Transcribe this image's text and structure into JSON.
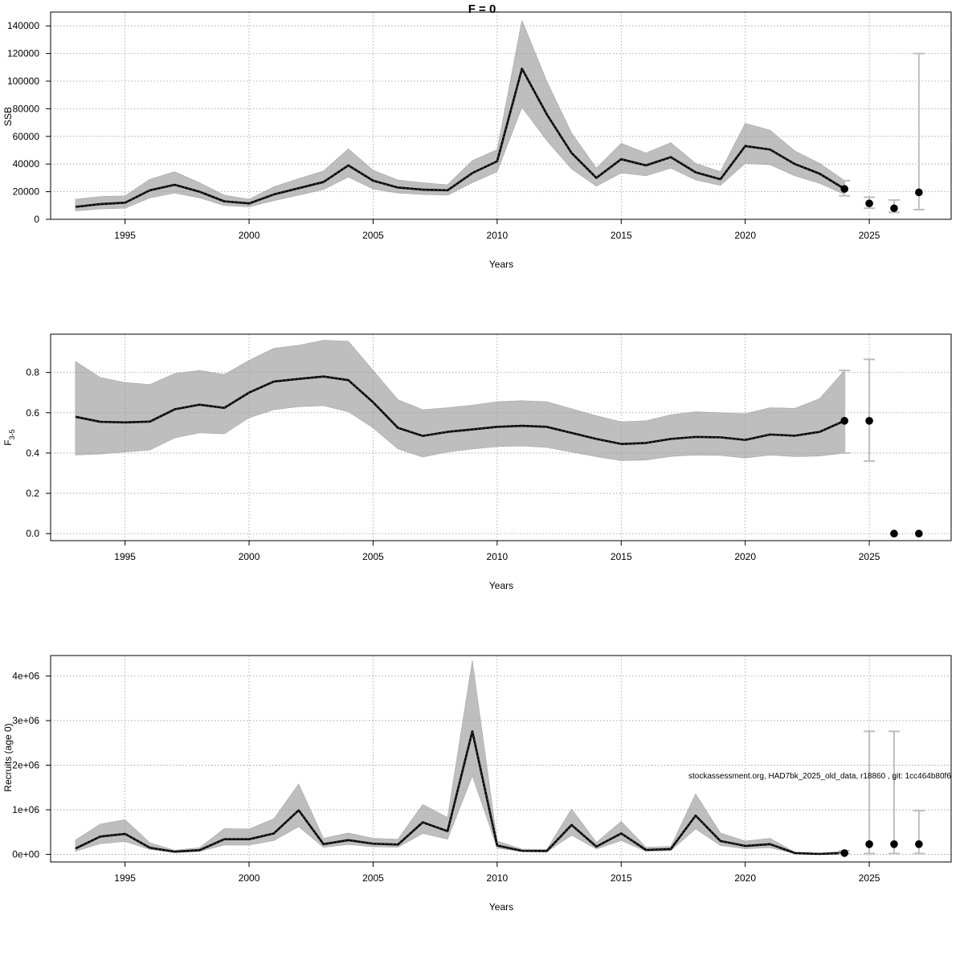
{
  "page": {
    "title": "F = 0",
    "watermark": "stockassessment.org, HAD7bk_2025_old_data, r18860 , git: 1cc464b80f6"
  },
  "colors": {
    "band": "#bebebe",
    "line": "#000000",
    "grid": "#9a9a9a",
    "error_bar": "#bebebe"
  },
  "chart_data": [
    {
      "id": "ssb",
      "type": "line",
      "xlabel": "Years",
      "ylabel": "SSB",
      "xlim": [
        1992,
        2028.3
      ],
      "ylim": [
        0,
        150000
      ],
      "x_ticks": [
        1995,
        2000,
        2005,
        2010,
        2015,
        2020,
        2025
      ],
      "y_ticks": [
        0,
        20000,
        40000,
        60000,
        80000,
        100000,
        120000,
        140000
      ],
      "y_tick_labels": [
        "0",
        "20000",
        "40000",
        "60000",
        "80000",
        "100000",
        "120000",
        "140000"
      ],
      "grid": true,
      "years": [
        1993,
        1994,
        1995,
        1996,
        1997,
        1998,
        1999,
        2000,
        2001,
        2002,
        2003,
        2004,
        2005,
        2006,
        2007,
        2008,
        2009,
        2010,
        2011,
        2012,
        2013,
        2014,
        2015,
        2016,
        2017,
        2018,
        2019,
        2020,
        2021,
        2022,
        2023,
        2024
      ],
      "estimate": [
        9000,
        11000,
        12000,
        21000,
        25000,
        20000,
        13000,
        11500,
        18000,
        22500,
        27000,
        39000,
        28000,
        23000,
        21500,
        21000,
        33500,
        42000,
        109000,
        76000,
        48000,
        30000,
        43500,
        39000,
        45000,
        34000,
        29000,
        53000,
        50500,
        40000,
        33000,
        22000
      ],
      "lower": [
        6000,
        7500,
        8000,
        15500,
        19000,
        15500,
        10000,
        9000,
        13500,
        17500,
        21500,
        30500,
        22000,
        19000,
        18000,
        17500,
        26500,
        34500,
        81000,
        57000,
        36500,
        24000,
        33500,
        31500,
        37000,
        28500,
        24500,
        40500,
        39500,
        31500,
        26000,
        18000
      ],
      "upper": [
        14500,
        16500,
        17000,
        29000,
        34500,
        26500,
        17500,
        14500,
        23500,
        29500,
        35000,
        51000,
        35500,
        28500,
        26500,
        25000,
        42500,
        50500,
        144000,
        100000,
        62500,
        37000,
        55000,
        48000,
        55500,
        40500,
        34500,
        69500,
        64500,
        49500,
        40500,
        28000
      ],
      "forecast": [
        {
          "year": 2024,
          "median": 22000,
          "low": 17000,
          "high": 28000
        },
        {
          "year": 2025,
          "median": 11500,
          "low": 8000,
          "high": 16000
        },
        {
          "year": 2026,
          "median": 8000,
          "low": 5000,
          "high": 14000
        },
        {
          "year": 2027,
          "median": 19500,
          "low": 7000,
          "high": 120000
        }
      ]
    },
    {
      "id": "fbar",
      "type": "line",
      "xlabel": "Years",
      "ylabel": "F",
      "ylabel_subscript": "3-5",
      "xlim": [
        1992,
        2028.3
      ],
      "ylim": [
        -0.035,
        0.99
      ],
      "x_ticks": [
        1995,
        2000,
        2005,
        2010,
        2015,
        2020,
        2025
      ],
      "y_ticks": [
        0,
        0.2,
        0.4,
        0.6,
        0.8
      ],
      "y_tick_labels": [
        "0.0",
        "0.2",
        "0.4",
        "0.6",
        "0.8"
      ],
      "grid": true,
      "years": [
        1993,
        1994,
        1995,
        1996,
        1997,
        1998,
        1999,
        2000,
        2001,
        2002,
        2003,
        2004,
        2005,
        2006,
        2007,
        2008,
        2009,
        2010,
        2011,
        2012,
        2013,
        2014,
        2015,
        2016,
        2017,
        2018,
        2019,
        2020,
        2021,
        2022,
        2023,
        2024
      ],
      "estimate": [
        0.58,
        0.555,
        0.552,
        0.556,
        0.617,
        0.64,
        0.624,
        0.7,
        0.755,
        0.768,
        0.78,
        0.762,
        0.652,
        0.525,
        0.485,
        0.505,
        0.517,
        0.53,
        0.535,
        0.53,
        0.5,
        0.47,
        0.445,
        0.45,
        0.47,
        0.48,
        0.478,
        0.465,
        0.492,
        0.486,
        0.505,
        0.56
      ],
      "lower": [
        0.39,
        0.395,
        0.405,
        0.415,
        0.475,
        0.5,
        0.495,
        0.575,
        0.615,
        0.63,
        0.635,
        0.605,
        0.525,
        0.42,
        0.38,
        0.405,
        0.42,
        0.432,
        0.435,
        0.428,
        0.405,
        0.382,
        0.362,
        0.365,
        0.383,
        0.39,
        0.388,
        0.375,
        0.39,
        0.382,
        0.385,
        0.4
      ],
      "upper": [
        0.855,
        0.775,
        0.75,
        0.74,
        0.795,
        0.81,
        0.79,
        0.86,
        0.92,
        0.935,
        0.96,
        0.955,
        0.81,
        0.665,
        0.615,
        0.625,
        0.638,
        0.655,
        0.66,
        0.655,
        0.62,
        0.585,
        0.555,
        0.56,
        0.59,
        0.605,
        0.6,
        0.595,
        0.625,
        0.622,
        0.67,
        0.81
      ],
      "forecast": [
        {
          "year": 2024,
          "median": 0.56,
          "low": 0.4,
          "high": 0.81
        },
        {
          "year": 2025,
          "median": 0.56,
          "low": 0.36,
          "high": 0.865
        },
        {
          "year": 2026,
          "median": 0.0,
          "low": 0.0,
          "high": 0.0
        },
        {
          "year": 2027,
          "median": 0.0,
          "low": 0.0,
          "high": 0.0
        }
      ]
    },
    {
      "id": "recruits",
      "type": "line",
      "xlabel": "Years",
      "ylabel": "Recruits (age 0)",
      "xlim": [
        1992,
        2028.3
      ],
      "ylim": [
        -170000,
        4460000
      ],
      "x_ticks": [
        1995,
        2000,
        2005,
        2010,
        2015,
        2020,
        2025
      ],
      "y_ticks": [
        0,
        1000000,
        2000000,
        3000000,
        4000000
      ],
      "y_tick_labels": [
        "0e+00",
        "1e+06",
        "2e+06",
        "3e+06",
        "4e+06"
      ],
      "grid": true,
      "years": [
        1993,
        1994,
        1995,
        1996,
        1997,
        1998,
        1999,
        2000,
        2001,
        2002,
        2003,
        2004,
        2005,
        2006,
        2007,
        2008,
        2009,
        2010,
        2011,
        2012,
        2013,
        2014,
        2015,
        2016,
        2017,
        2018,
        2019,
        2020,
        2021,
        2022,
        2023,
        2024
      ],
      "estimate": [
        130000,
        400000,
        460000,
        150000,
        60000,
        95000,
        340000,
        340000,
        470000,
        990000,
        230000,
        320000,
        240000,
        220000,
        720000,
        520000,
        2760000,
        200000,
        80000,
        75000,
        660000,
        175000,
        470000,
        100000,
        120000,
        870000,
        300000,
        190000,
        230000,
        30000,
        10000,
        30000
      ],
      "lower": [
        70000,
        240000,
        290000,
        110000,
        40000,
        65000,
        210000,
        210000,
        310000,
        620000,
        160000,
        220000,
        170000,
        160000,
        470000,
        340000,
        1760000,
        140000,
        60000,
        55000,
        430000,
        120000,
        310000,
        70000,
        85000,
        570000,
        200000,
        125000,
        150000,
        20000,
        5000,
        15000
      ],
      "upper": [
        320000,
        680000,
        780000,
        260000,
        95000,
        150000,
        580000,
        570000,
        800000,
        1580000,
        360000,
        480000,
        360000,
        340000,
        1120000,
        830000,
        4350000,
        300000,
        120000,
        110000,
        1020000,
        270000,
        740000,
        160000,
        180000,
        1360000,
        480000,
        300000,
        360000,
        50000,
        25000,
        80000
      ],
      "forecast": [
        {
          "year": 2024,
          "median": 30000,
          "low": 15000,
          "high": 80000
        },
        {
          "year": 2025,
          "median": 230000,
          "low": 20000,
          "high": 2760000
        },
        {
          "year": 2026,
          "median": 230000,
          "low": 20000,
          "high": 2760000
        },
        {
          "year": 2027,
          "median": 230000,
          "low": 20000,
          "high": 980000
        }
      ]
    }
  ]
}
